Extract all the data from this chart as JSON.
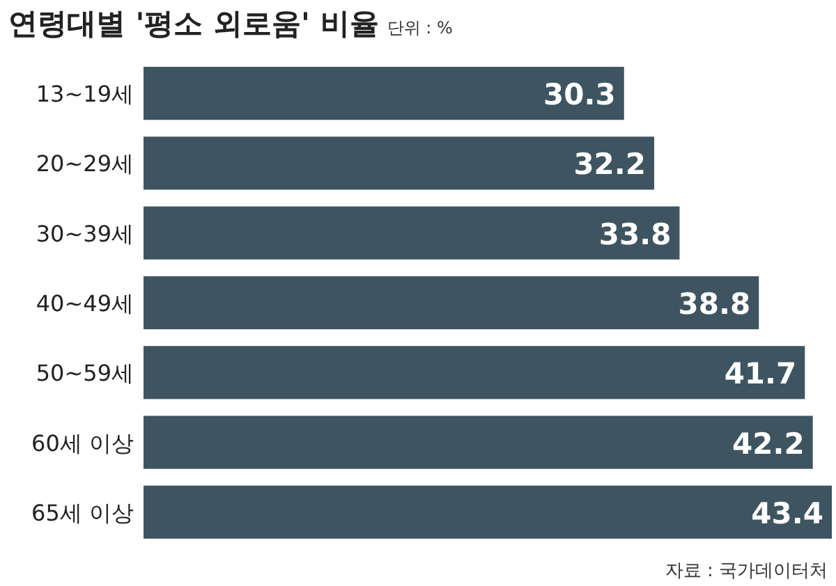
{
  "chart_data": {
    "type": "bar",
    "orientation": "horizontal",
    "title": "연령대별 '평소 외로움' 비율",
    "subtitle": "단위 : %",
    "annotations": [
      "자료 : 국가데이터처"
    ],
    "categories": [
      "13~19세",
      "20~29세",
      "30~39세",
      "40~49세",
      "50~59세",
      "60세 이상",
      "65세 이상"
    ],
    "values": [
      30.3,
      32.2,
      33.8,
      38.8,
      41.7,
      42.2,
      43.4
    ],
    "color": "#3e5561",
    "data_labels": true
  }
}
